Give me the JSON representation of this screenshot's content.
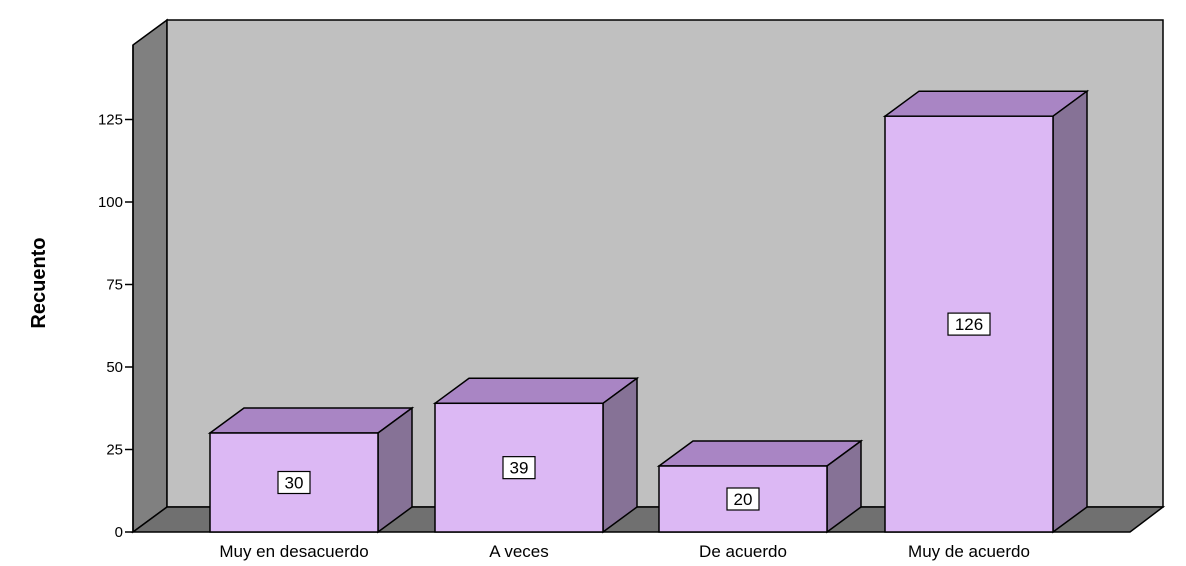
{
  "chart_data": {
    "type": "bar",
    "style": "3d",
    "categories": [
      "Muy en desacuerdo",
      "A veces",
      "De acuerdo",
      "Muy de acuerdo"
    ],
    "values": [
      30,
      39,
      20,
      126
    ],
    "data_labels": [
      "30",
      "39",
      "20",
      "126"
    ],
    "title": "",
    "xlabel": "",
    "ylabel": "Recuento",
    "ylim": [
      0,
      150
    ],
    "yticks": [
      0,
      25,
      50,
      75,
      100,
      125
    ],
    "ytick_labels": [
      "0",
      "25",
      "50",
      "75",
      "100",
      "125"
    ],
    "grid": false,
    "colors": {
      "bar_front": "#dcb8f4",
      "bar_top": "#a985c4",
      "bar_side": "#867296",
      "back_wall": "#c0c0c0",
      "left_wall": "#808080",
      "floor": "#707070"
    }
  }
}
